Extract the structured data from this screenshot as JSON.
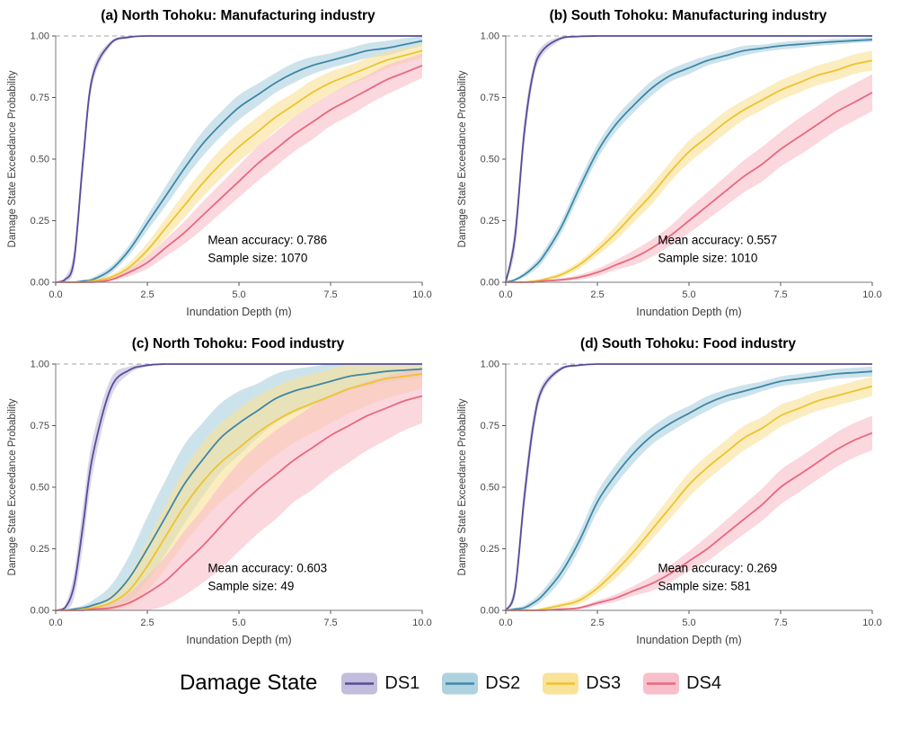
{
  "legend": {
    "title": "Damage State"
  },
  "chart_data": {
    "type": "line",
    "xlabel": "Inundation Depth (m)",
    "ylabel": "Damage State Exceedance Probability",
    "xlim": [
      0,
      10
    ],
    "ylim": [
      0,
      1
    ],
    "x_ticks": [
      0,
      2.5,
      5,
      7.5,
      10
    ],
    "x_tick_labels": [
      "0.0",
      "2.5",
      "5.0",
      "7.5",
      "10.0"
    ],
    "y_ticks": [
      0,
      0.25,
      0.5,
      0.75,
      1
    ],
    "y_tick_labels": [
      "0.00",
      "0.25",
      "0.50",
      "0.75",
      "1.00"
    ],
    "reference_line_y": 1.0,
    "series_styles": [
      {
        "name": "DS1",
        "stroke": "#564d99",
        "fill": "#c3bcdc"
      },
      {
        "name": "DS2",
        "stroke": "#3e87a6",
        "fill": "#aed2e0"
      },
      {
        "name": "DS3",
        "stroke": "#eec32d",
        "fill": "#f9e29a"
      },
      {
        "name": "DS4",
        "stroke": "#e7697f",
        "fill": "#f8bfca"
      }
    ],
    "x": [
      0,
      0.25,
      0.5,
      0.75,
      1,
      1.5,
      2,
      2.5,
      3,
      3.5,
      4,
      4.5,
      5,
      5.5,
      6,
      6.5,
      7,
      7.5,
      8,
      8.5,
      9,
      9.5,
      10
    ],
    "panels": [
      {
        "id": "a",
        "title": "(a) North Tohoku: Manufacturing industry",
        "annotation": {
          "mean_accuracy_label": "Mean accuracy: 0.786",
          "sample_size_label": "Sample size: 1070"
        },
        "series": [
          {
            "name": "DS1",
            "mean": [
              0,
              0.01,
              0.09,
              0.5,
              0.83,
              0.97,
              0.995,
              1,
              1,
              1,
              1,
              1,
              1,
              1,
              1,
              1,
              1,
              1,
              1,
              1,
              1,
              1,
              1
            ],
            "band": [
              0,
              0.01,
              0.04,
              0.05,
              0.03,
              0.01,
              0.005,
              0,
              0,
              0,
              0,
              0,
              0,
              0,
              0,
              0,
              0,
              0,
              0,
              0,
              0,
              0,
              0
            ]
          },
          {
            "name": "DS2",
            "mean": [
              0,
              0,
              0,
              0.005,
              0.01,
              0.05,
              0.13,
              0.24,
              0.35,
              0.46,
              0.56,
              0.64,
              0.71,
              0.76,
              0.81,
              0.85,
              0.88,
              0.9,
              0.92,
              0.94,
              0.95,
              0.965,
              0.98
            ],
            "band": [
              0,
              0,
              0,
              0.005,
              0.01,
              0.015,
              0.02,
              0.03,
              0.04,
              0.045,
              0.05,
              0.05,
              0.05,
              0.045,
              0.04,
              0.04,
              0.035,
              0.03,
              0.03,
              0.03,
              0.03,
              0.025,
              0.02
            ]
          },
          {
            "name": "DS3",
            "mean": [
              0,
              0,
              0,
              0,
              0.005,
              0.02,
              0.06,
              0.13,
              0.22,
              0.31,
              0.4,
              0.48,
              0.55,
              0.61,
              0.67,
              0.72,
              0.77,
              0.81,
              0.84,
              0.87,
              0.9,
              0.92,
              0.94
            ],
            "band": [
              0,
              0,
              0,
              0,
              0.005,
              0.01,
              0.02,
              0.03,
              0.04,
              0.05,
              0.055,
              0.06,
              0.06,
              0.06,
              0.055,
              0.05,
              0.05,
              0.045,
              0.04,
              0.04,
              0.035,
              0.03,
              0.03
            ]
          },
          {
            "name": "DS4",
            "mean": [
              0,
              0,
              0,
              0,
              0,
              0.01,
              0.04,
              0.08,
              0.14,
              0.2,
              0.27,
              0.34,
              0.41,
              0.48,
              0.54,
              0.6,
              0.65,
              0.7,
              0.74,
              0.78,
              0.82,
              0.85,
              0.88
            ],
            "band": [
              0,
              0,
              0,
              0,
              0,
              0.005,
              0.015,
              0.025,
              0.035,
              0.045,
              0.055,
              0.06,
              0.065,
              0.07,
              0.07,
              0.07,
              0.07,
              0.065,
              0.065,
              0.06,
              0.06,
              0.055,
              0.05
            ]
          }
        ]
      },
      {
        "id": "b",
        "title": "(b) South Tohoku: Manufacturing industry",
        "annotation": {
          "mean_accuracy_label": "Mean accuracy: 0.557",
          "sample_size_label": "Sample size: 1010"
        },
        "series": [
          {
            "name": "DS1",
            "mean": [
              0,
              0.18,
              0.6,
              0.85,
              0.94,
              0.99,
              0.998,
              1,
              1,
              1,
              1,
              1,
              1,
              1,
              1,
              1,
              1,
              1,
              1,
              1,
              1,
              1,
              1
            ],
            "band": [
              0,
              0.05,
              0.05,
              0.03,
              0.02,
              0.008,
              0.003,
              0,
              0,
              0,
              0,
              0,
              0,
              0,
              0,
              0,
              0,
              0,
              0,
              0,
              0,
              0,
              0
            ]
          },
          {
            "name": "DS2",
            "mean": [
              0,
              0.01,
              0.03,
              0.06,
              0.1,
              0.22,
              0.38,
              0.53,
              0.64,
              0.72,
              0.79,
              0.84,
              0.87,
              0.9,
              0.92,
              0.94,
              0.95,
              0.96,
              0.966,
              0.972,
              0.977,
              0.981,
              0.985
            ],
            "band": [
              0,
              0.005,
              0.01,
              0.015,
              0.02,
              0.025,
              0.03,
              0.03,
              0.03,
              0.03,
              0.03,
              0.025,
              0.025,
              0.02,
              0.02,
              0.02,
              0.015,
              0.015,
              0.015,
              0.012,
              0.012,
              0.01,
              0.01
            ]
          },
          {
            "name": "DS3",
            "mean": [
              0,
              0,
              0,
              0.005,
              0.01,
              0.03,
              0.07,
              0.13,
              0.2,
              0.28,
              0.36,
              0.45,
              0.53,
              0.59,
              0.65,
              0.7,
              0.74,
              0.78,
              0.81,
              0.84,
              0.86,
              0.885,
              0.9
            ],
            "band": [
              0,
              0,
              0,
              0,
              0.005,
              0.01,
              0.015,
              0.02,
              0.03,
              0.035,
              0.04,
              0.04,
              0.045,
              0.045,
              0.045,
              0.04,
              0.04,
              0.04,
              0.04,
              0.04,
              0.04,
              0.04,
              0.04
            ]
          },
          {
            "name": "DS4",
            "mean": [
              0,
              0,
              0,
              0,
              0.005,
              0.01,
              0.02,
              0.04,
              0.07,
              0.1,
              0.14,
              0.19,
              0.25,
              0.31,
              0.37,
              0.43,
              0.48,
              0.54,
              0.59,
              0.64,
              0.69,
              0.73,
              0.77
            ],
            "band": [
              0,
              0,
              0,
              0,
              0,
              0.005,
              0.01,
              0.015,
              0.02,
              0.03,
              0.035,
              0.04,
              0.05,
              0.055,
              0.06,
              0.065,
              0.07,
              0.07,
              0.075,
              0.075,
              0.075,
              0.075,
              0.075
            ]
          }
        ]
      },
      {
        "id": "c",
        "title": "(c) North Tohoku: Food industry",
        "annotation": {
          "mean_accuracy_label": "Mean accuracy: 0.603",
          "sample_size_label": "Sample size: 49"
        },
        "series": [
          {
            "name": "DS1",
            "mean": [
              0,
              0.01,
              0.1,
              0.35,
              0.62,
              0.9,
              0.975,
              0.995,
              1,
              1,
              1,
              1,
              1,
              1,
              1,
              1,
              1,
              1,
              1,
              1,
              1,
              1,
              1
            ],
            "band": [
              0,
              0.01,
              0.05,
              0.08,
              0.07,
              0.04,
              0.015,
              0.005,
              0,
              0,
              0,
              0,
              0,
              0,
              0,
              0,
              0,
              0,
              0,
              0,
              0,
              0,
              0
            ]
          },
          {
            "name": "DS2",
            "mean": [
              0,
              0,
              0.005,
              0.01,
              0.02,
              0.05,
              0.13,
              0.25,
              0.38,
              0.51,
              0.61,
              0.7,
              0.76,
              0.81,
              0.86,
              0.89,
              0.91,
              0.93,
              0.95,
              0.96,
              0.97,
              0.975,
              0.98
            ],
            "band": [
              0,
              0,
              0.005,
              0.01,
              0.02,
              0.05,
              0.09,
              0.13,
              0.15,
              0.16,
              0.15,
              0.14,
              0.13,
              0.11,
              0.1,
              0.09,
              0.08,
              0.07,
              0.06,
              0.05,
              0.045,
              0.04,
              0.035
            ]
          },
          {
            "name": "DS3",
            "mean": [
              0,
              0,
              0,
              0.005,
              0.01,
              0.03,
              0.08,
              0.18,
              0.3,
              0.42,
              0.52,
              0.6,
              0.66,
              0.72,
              0.77,
              0.81,
              0.84,
              0.87,
              0.9,
              0.92,
              0.94,
              0.95,
              0.96
            ],
            "band": [
              0,
              0,
              0,
              0.005,
              0.01,
              0.03,
              0.06,
              0.1,
              0.13,
              0.15,
              0.16,
              0.16,
              0.16,
              0.15,
              0.14,
              0.13,
              0.12,
              0.11,
              0.1,
              0.09,
              0.08,
              0.07,
              0.06
            ]
          },
          {
            "name": "DS4",
            "mean": [
              0,
              0,
              0,
              0,
              0.005,
              0.01,
              0.03,
              0.07,
              0.12,
              0.19,
              0.26,
              0.34,
              0.42,
              0.49,
              0.55,
              0.61,
              0.66,
              0.71,
              0.75,
              0.79,
              0.82,
              0.85,
              0.87
            ],
            "band": [
              0,
              0,
              0,
              0,
              0.005,
              0.015,
              0.04,
              0.07,
              0.1,
              0.13,
              0.15,
              0.17,
              0.18,
              0.18,
              0.18,
              0.17,
              0.17,
              0.16,
              0.15,
              0.14,
              0.13,
              0.12,
              0.11
            ]
          }
        ]
      },
      {
        "id": "d",
        "title": "(d) South Tohoku: Food industry",
        "annotation": {
          "mean_accuracy_label": "Mean accuracy: 0.269",
          "sample_size_label": "Sample size: 581"
        },
        "series": [
          {
            "name": "DS1",
            "mean": [
              0,
              0.08,
              0.45,
              0.75,
              0.9,
              0.98,
              0.995,
              1,
              1,
              1,
              1,
              1,
              1,
              1,
              1,
              1,
              1,
              1,
              1,
              1,
              1,
              1,
              1
            ],
            "band": [
              0,
              0.03,
              0.05,
              0.04,
              0.02,
              0.008,
              0.003,
              0,
              0,
              0,
              0,
              0,
              0,
              0,
              0,
              0,
              0,
              0,
              0,
              0,
              0,
              0,
              0
            ]
          },
          {
            "name": "DS2",
            "mean": [
              0,
              0.005,
              0.01,
              0.03,
              0.06,
              0.15,
              0.28,
              0.44,
              0.55,
              0.64,
              0.71,
              0.76,
              0.8,
              0.84,
              0.87,
              0.89,
              0.91,
              0.93,
              0.94,
              0.95,
              0.96,
              0.965,
              0.97
            ],
            "band": [
              0,
              0.005,
              0.01,
              0.015,
              0.02,
              0.03,
              0.035,
              0.04,
              0.04,
              0.04,
              0.035,
              0.035,
              0.03,
              0.03,
              0.025,
              0.025,
              0.02,
              0.02,
              0.02,
              0.02,
              0.02,
              0.02,
              0.02
            ]
          },
          {
            "name": "DS3",
            "mean": [
              0,
              0,
              0,
              0,
              0.005,
              0.02,
              0.04,
              0.09,
              0.16,
              0.24,
              0.33,
              0.42,
              0.51,
              0.58,
              0.64,
              0.7,
              0.74,
              0.79,
              0.82,
              0.85,
              0.87,
              0.89,
              0.91
            ],
            "band": [
              0,
              0,
              0,
              0,
              0.005,
              0.01,
              0.015,
              0.02,
              0.03,
              0.035,
              0.04,
              0.045,
              0.05,
              0.05,
              0.05,
              0.05,
              0.045,
              0.045,
              0.04,
              0.04,
              0.04,
              0.04,
              0.04
            ]
          },
          {
            "name": "DS4",
            "mean": [
              0,
              0,
              0,
              0,
              0,
              0.005,
              0.01,
              0.03,
              0.05,
              0.08,
              0.11,
              0.15,
              0.2,
              0.25,
              0.31,
              0.37,
              0.43,
              0.5,
              0.55,
              0.6,
              0.65,
              0.69,
              0.72
            ],
            "band": [
              0,
              0,
              0,
              0,
              0,
              0,
              0.005,
              0.01,
              0.015,
              0.02,
              0.03,
              0.035,
              0.04,
              0.05,
              0.055,
              0.06,
              0.065,
              0.07,
              0.07,
              0.07,
              0.07,
              0.07,
              0.07
            ]
          }
        ]
      }
    ]
  }
}
